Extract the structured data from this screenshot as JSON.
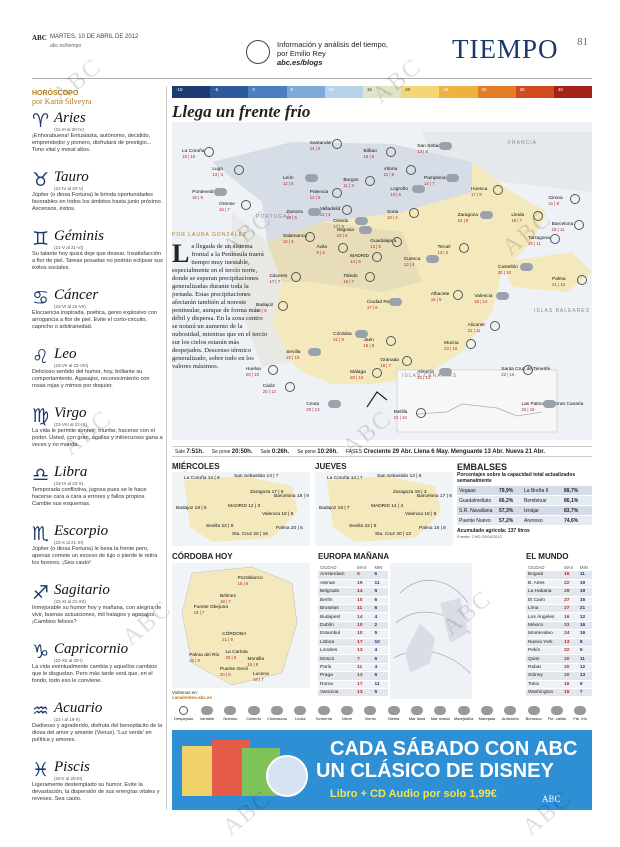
{
  "header": {
    "paper": "ABC",
    "date": "MARTES, 10 DE ABRIL DE 2012",
    "site": "abc.es/tiempo",
    "blog_text": "Información y análisis del tiempo, por Emilio Rey",
    "blog_url": "abc.es/blogs",
    "section": "TIEMPO",
    "page": "81"
  },
  "horoscope": {
    "title": "HORÓSCOPO",
    "author": "por Karin Silveyra",
    "signs": [
      {
        "glyph": "♈",
        "name": "Aries",
        "dates": "(21-III al 20-IV)",
        "text": "¡Enhorabuena! Entusiasta, autónomo, decidido, emprendedor y pionero, disfrutará de prestigio... Tono vital y moral altos."
      },
      {
        "glyph": "♉",
        "name": "Tauro",
        "dates": "(21-IV al 20-V)",
        "text": "Júpiter (o diosa Fortuna) le brinda oportunidades favorables en todos los ámbitos hasta junio próximo. Ascensos, éxitos."
      },
      {
        "glyph": "♊",
        "name": "Géminis",
        "dates": "(21-V al 21-VI)",
        "text": "Su talante hoy quizá deje que desear. Insatisfacción a flor de piel. Tareas posadas no podrán eclipsar sus éxitos sociales."
      },
      {
        "glyph": "♋",
        "name": "Cáncer",
        "dates": "(22-VI al 22-VII)",
        "text": "Elocuencia inspirada, poética, genio explosivo con arrogancia a flor de piel. Evite el corto-circuito, capricho o arbitrariedad."
      },
      {
        "glyph": "♌",
        "name": "Leo",
        "dates": "(23-VII al 22-VIII)",
        "text": "Delicioso sentido del humor, hoy, brillante su comportamiento. Agasajos, reconocimiento con rosas rojas y mimos por doquier."
      },
      {
        "glyph": "♍",
        "name": "Virgo",
        "dates": "(23-VIII al 22-IX)",
        "text": "La vida le permite sonreír; triunfar, hacerse con el poder. Usted, con gran, agallas y milrecursos gana a veces y no manda."
      },
      {
        "glyph": "♎",
        "name": "Libra",
        "dates": "(23-IX al 22-X)",
        "text": "Temporada conflictiva, jugosa pues se le hace hacerse cara a cara a errores y fallos propios. Cambie sus esquemas."
      },
      {
        "glyph": "♏",
        "name": "Escorpio",
        "dates": "(23-X al 21-XI)",
        "text": "Júpiter (o diosa Fortuna) le besa la frente pero, apenas comete un exceso de lujo o pierde le retira los favores. ¡Sea cauto!"
      },
      {
        "glyph": "♐",
        "name": "Sagitario",
        "dates": "(22-XI al 21-XII)",
        "text": "Inmejorable su humor hoy y mañana, con alegría de vivir, buenas actuaciones, mil halagos y agasajos. ¡Cambios felices?"
      },
      {
        "glyph": "♑",
        "name": "Capricornio",
        "dates": "(22-XII al 20-I)",
        "text": "La vida eventualmente cambia y aquellos cambios que le disgustan. Pero más tarde verá que, en el fondo, todo eso le conviene."
      },
      {
        "glyph": "♒",
        "name": "Acuario",
        "dates": "(21-I al 19-II)",
        "text": "Dadivoso y agraderido, disfruta del beneplácito de la diosa del amor y amante (Venus). 'Luz verde' en política y amores."
      },
      {
        "glyph": "♓",
        "name": "Piscis",
        "dates": "(20-II al 20-III)",
        "text": "Ligeramente destemplado su humor. Evite la devastación, la dispersión de sus energías vitales y reveses. Sea cauto."
      }
    ]
  },
  "scale": {
    "labels": [
      "-10",
      "-5",
      "0",
      "5",
      "10",
      "15",
      "20",
      "25",
      "30",
      "35",
      "40"
    ],
    "colors": [
      "#1d3b73",
      "#2c5a9a",
      "#4a7fc0",
      "#7eaad8",
      "#b6d1ea",
      "#dfe6c8",
      "#f3d774",
      "#eeb23e",
      "#e47d28",
      "#d24b1f",
      "#a32417"
    ]
  },
  "main": {
    "title": "Llega un frente frío",
    "byline": "POR LAURA GONZÁLEZ",
    "dropcap": "L",
    "article": "a llegada de un sistema frontal a la Península traerá tiempo muy inestable, especialmente en el tercio norte, donde se esperan precipitaciones generalizadas durante toda la jornada. Estas precipitaciones afectarán también al noreste peninsular, aunque de forma más débil y dispersa. En la zona centro se notará un aumento de la nubosidad, mientras que en el tercio sur los cielos estarán más despejados. Descenso térmico generalizado, sobre todo en los valores máximos."
  },
  "map": {
    "countries": [
      "FRANCIA",
      "PORTUGAL"
    ],
    "islands": [
      "ISLAS BALEARES",
      "ISLAS CANARIAS"
    ],
    "cities": [
      {
        "name": "Oviedo",
        "temp": "17 | 9",
        "x": 48,
        "y": 30
      },
      {
        "name": "Santander",
        "temp": "14 | 9",
        "x": 41,
        "y": 3
      },
      {
        "name": "Bilbao",
        "temp": "15 | 8",
        "x": 57,
        "y": 6
      },
      {
        "name": "San Sebastián",
        "temp": "13 | 8",
        "x": 73,
        "y": 4
      },
      {
        "name": "La Coruña",
        "temp": "15 | 10",
        "x": 3,
        "y": 6
      },
      {
        "name": "Lugo",
        "temp": "13 | 4",
        "x": 12,
        "y": 12
      },
      {
        "name": "León",
        "temp": "12 | 5",
        "x": 33,
        "y": 15
      },
      {
        "name": "Burgos",
        "temp": "11 | 3",
        "x": 51,
        "y": 16
      },
      {
        "name": "Vitoria",
        "temp": "11 | 6",
        "x": 63,
        "y": 12
      },
      {
        "name": "Pamplona",
        "temp": "14 | 7",
        "x": 75,
        "y": 15
      },
      {
        "name": "Huesca",
        "temp": "17 | 8",
        "x": 89,
        "y": 19
      },
      {
        "name": "Girona",
        "temp": "21 | 8",
        "x": 112,
        "y": 22
      },
      {
        "name": "Pontevedra",
        "temp": "16 | 9",
        "x": 6,
        "y": 20
      },
      {
        "name": "Orense",
        "temp": "16 | 7",
        "x": 14,
        "y": 24
      },
      {
        "name": "Palencia",
        "temp": "12 | 5",
        "x": 41,
        "y": 20
      },
      {
        "name": "Logroño",
        "temp": "13 | 6",
        "x": 65,
        "y": 19
      },
      {
        "name": "Lleida",
        "temp": "19 | 7",
        "x": 101,
        "y": 28
      },
      {
        "name": "Barcelona",
        "temp": "19 | 11",
        "x": 113,
        "y": 31
      },
      {
        "name": "Zamora",
        "temp": "13 | 5",
        "x": 34,
        "y": 27
      },
      {
        "name": "Valladolid",
        "temp": "12 | 4",
        "x": 44,
        "y": 26
      },
      {
        "name": "Soria",
        "temp": "10 | 2",
        "x": 64,
        "y": 27
      },
      {
        "name": "Zaragoza",
        "temp": "16 | 8",
        "x": 85,
        "y": 28
      },
      {
        "name": "Tarragona",
        "temp": "20 | 11",
        "x": 106,
        "y": 36
      },
      {
        "name": "Salamanca",
        "temp": "12 | 4",
        "x": 33,
        "y": 35
      },
      {
        "name": "Segovia",
        "temp": "10 | 4",
        "x": 49,
        "y": 33
      },
      {
        "name": "Guadalajara",
        "temp": "14 | 5",
        "x": 59,
        "y": 37
      },
      {
        "name": "Teruel",
        "temp": "13 | 5",
        "x": 79,
        "y": 39
      },
      {
        "name": "Castellón",
        "temp": "20 | 10",
        "x": 97,
        "y": 46
      },
      {
        "name": "Ávila",
        "temp": "9 | 3",
        "x": 43,
        "y": 39
      },
      {
        "name": "MADRID",
        "temp": "14 | 6",
        "x": 53,
        "y": 42
      },
      {
        "name": "Cuenca",
        "temp": "13 | 4",
        "x": 69,
        "y": 43
      },
      {
        "name": "Cáceres",
        "temp": "17 | 7",
        "x": 29,
        "y": 49
      },
      {
        "name": "Toledo",
        "temp": "16 | 7",
        "x": 51,
        "y": 49
      },
      {
        "name": "Valencia",
        "temp": "22 | 12",
        "x": 90,
        "y": 56
      },
      {
        "name": "Palma",
        "temp": "21 | 10",
        "x": 120,
        "y": 50
      },
      {
        "name": "Albacete",
        "temp": "16 | 5",
        "x": 77,
        "y": 55
      },
      {
        "name": "Ciudad Real",
        "temp": "17 | 6",
        "x": 58,
        "y": 58
      },
      {
        "name": "Badajoz",
        "temp": "19 | 8",
        "x": 25,
        "y": 59
      },
      {
        "name": "Alicante",
        "temp": "21 | 11",
        "x": 88,
        "y": 66
      },
      {
        "name": "Córdoba",
        "temp": "21 | 9",
        "x": 48,
        "y": 69
      },
      {
        "name": "Jaén",
        "temp": "18 | 8",
        "x": 57,
        "y": 71
      },
      {
        "name": "Murcia",
        "temp": "23 | 10",
        "x": 81,
        "y": 72
      },
      {
        "name": "Sevilla",
        "temp": "22 | 10",
        "x": 34,
        "y": 75
      },
      {
        "name": "Huelva",
        "temp": "20 | 10",
        "x": 22,
        "y": 81
      },
      {
        "name": "Granada",
        "temp": "18 | 7",
        "x": 62,
        "y": 78
      },
      {
        "name": "Almería",
        "temp": "22 | 13",
        "x": 73,
        "y": 82
      },
      {
        "name": "Cádiz",
        "temp": "20 | 13",
        "x": 27,
        "y": 87
      },
      {
        "name": "Málaga",
        "temp": "20 | 12",
        "x": 53,
        "y": 82
      },
      {
        "name": "Ceuta",
        "temp": "20 | 13",
        "x": 40,
        "y": 93
      },
      {
        "name": "Melilla",
        "temp": "21 | 14",
        "x": 66,
        "y": 96
      },
      {
        "name": "Santa Cruz de Tenerife",
        "temp": "22 | 16",
        "x": 98,
        "y": 81
      },
      {
        "name": "Las Palmas de Gran Canaria",
        "temp": "23 | 16",
        "x": 104,
        "y": 93
      }
    ]
  },
  "sunbar": {
    "items": [
      {
        "label": "Sale",
        "value": "7:51h."
      },
      {
        "label": "Se pone",
        "value": "20:50h."
      },
      {
        "label": "Sale",
        "value": "0:26h."
      },
      {
        "label": "Se pone",
        "value": "10:26h."
      },
      {
        "label": "FASES",
        "value": "Creciente 29 Abr.  Llena 6 May.  Menguante 13 Abr.  Nueva 21 Abr."
      }
    ]
  },
  "forecast": {
    "wed_title": "MIÉRCOLES",
    "thu_title": "JUEVES",
    "wed_cities": [
      "La Coruña 14 | 9",
      "San Sebastián 14 | 7",
      "Zaragoza 17 | 6",
      "Barcelona 18 | 9",
      "Badajoz 19 | 6",
      "MADRID 12 | 3",
      "Valencia 19 | 8",
      "Sevilla 22 | 8",
      "Palma 20 | 5",
      "Sta. Cruz 20 | 16"
    ],
    "thu_cities": [
      "La Coruña 14 | 7",
      "San Sebastián 13 | 6",
      "Zaragoza 18 | 3",
      "Barcelona 17 | 8",
      "Badajoz 19 | 7",
      "MADRID 14 | 4",
      "Valencia 18 | 8",
      "Sevilla 22 | 9",
      "Palma 18 | 8",
      "Sta. Cruz 20 | 13"
    ]
  },
  "embalses": {
    "title": "EMBALSES",
    "subtitle": "Porcentajes sobre la capacidad total actualizados semanalmente",
    "rows": [
      {
        "a": "Vegaas",
        "av": "79,9%",
        "b": "La Breña II",
        "bv": "89,7%"
      },
      {
        "a": "Guadalmellato",
        "av": "66,2%",
        "b": "Bembézar",
        "bv": "86,1%"
      },
      {
        "a": "S.R. Navallana",
        "av": "57,3%",
        "b": "Iznájar",
        "bv": "83,7%"
      },
      {
        "a": "Puente Nuevo",
        "av": "57,2%",
        "b": "Arenoso",
        "bv": "74,6%"
      }
    ],
    "footer": "Acumulado agrícola: 137 litros",
    "source": "Fuente: CHG 02/04/2012"
  },
  "cordoba": {
    "title": "CÓRDOBA HOY",
    "places": [
      {
        "name": "Pozoblanco",
        "temp": "16 | 6",
        "x": 56,
        "y": 8
      },
      {
        "name": "Bélmez",
        "temp": "18 | 7",
        "x": 40,
        "y": 25
      },
      {
        "name": "Fuente Obejuna",
        "temp": "18 | 7",
        "x": 16,
        "y": 35
      },
      {
        "name": "CÓRDOBA",
        "temp": "21 | 9",
        "x": 42,
        "y": 60
      },
      {
        "name": "La Carlota",
        "temp": "20 | 8",
        "x": 45,
        "y": 77
      },
      {
        "name": "Palma del Río",
        "temp": "22 | 9",
        "x": 12,
        "y": 80
      },
      {
        "name": "Montilla",
        "temp": "19 | 8",
        "x": 65,
        "y": 83
      },
      {
        "name": "Puente Genil",
        "temp": "20 | 8",
        "x": 40,
        "y": 93
      },
      {
        "name": "Lucena",
        "temp": "18 | 7",
        "x": 70,
        "y": 97
      }
    ],
    "footer_label": "Visítenos en:",
    "footer_url": "canalmeteo.abc.es"
  },
  "europe": {
    "title": "EUROPA MAÑANA",
    "headers": [
      "CIUDAD",
      "MAX",
      "MIN"
    ],
    "rows": [
      [
        "Ámsterdam",
        "5",
        "6"
      ],
      [
        "Atenas",
        "19",
        "11"
      ],
      [
        "Belgrado",
        "14",
        "5"
      ],
      [
        "Berlín",
        "10",
        "6"
      ],
      [
        "Bruselas",
        "11",
        "6"
      ],
      [
        "Budapest",
        "14",
        "4"
      ],
      [
        "Dublín",
        "10",
        "2"
      ],
      [
        "Estambul",
        "10",
        "5"
      ],
      [
        "Lisboa",
        "17",
        "10"
      ],
      [
        "Londres",
        "13",
        "4"
      ],
      [
        "Moscú",
        "7",
        "5"
      ],
      [
        "París",
        "11",
        "4"
      ],
      [
        "Praga",
        "13",
        "5"
      ],
      [
        "Roma",
        "17",
        "11"
      ],
      [
        "Varsovia",
        "13",
        "5"
      ]
    ]
  },
  "world": {
    "title": "EL MUNDO",
    "headers": [
      "CIUDAD",
      "MAX",
      "MIN"
    ],
    "rows": [
      [
        "Bogotá",
        "16",
        "11"
      ],
      [
        "B. Aires",
        "22",
        "19"
      ],
      [
        "La Habana",
        "29",
        "19"
      ],
      [
        "El Cairo",
        "27",
        "15"
      ],
      [
        "Lima",
        "27",
        "21"
      ],
      [
        "Los Ángeles",
        "16",
        "12"
      ],
      [
        "México",
        "23",
        "16"
      ],
      [
        "Montevideo",
        "24",
        "16"
      ],
      [
        "Nueva York",
        "13",
        "8"
      ],
      [
        "Pekín",
        "22",
        "5"
      ],
      [
        "Quito",
        "20",
        "11"
      ],
      [
        "Rabat",
        "20",
        "12"
      ],
      [
        "Sídney",
        "20",
        "13"
      ],
      [
        "Tokio",
        "16",
        "9"
      ],
      [
        "Washington",
        "15",
        "7"
      ]
    ]
  },
  "legend": {
    "items": [
      "Despejado",
      "Variable",
      "Nuboso",
      "Cubierto",
      "Chubascos",
      "Lluvia",
      "Tormenta",
      "Nieve",
      "Viento",
      "Niebla",
      "Mar llana",
      "Mar rizada",
      "Marejadilla",
      "Marejada",
      "Anticiclón",
      "Borrasca",
      "Fte. cálido",
      "Fte. frío"
    ]
  },
  "ad": {
    "line1": "CADA SÁBADO CON ABC",
    "line2": "UN CLÁSICO DE DISNEY",
    "line3": "Libro + CD Audio por solo 1,99€",
    "brand": "ABC"
  },
  "watermark": "ABC"
}
